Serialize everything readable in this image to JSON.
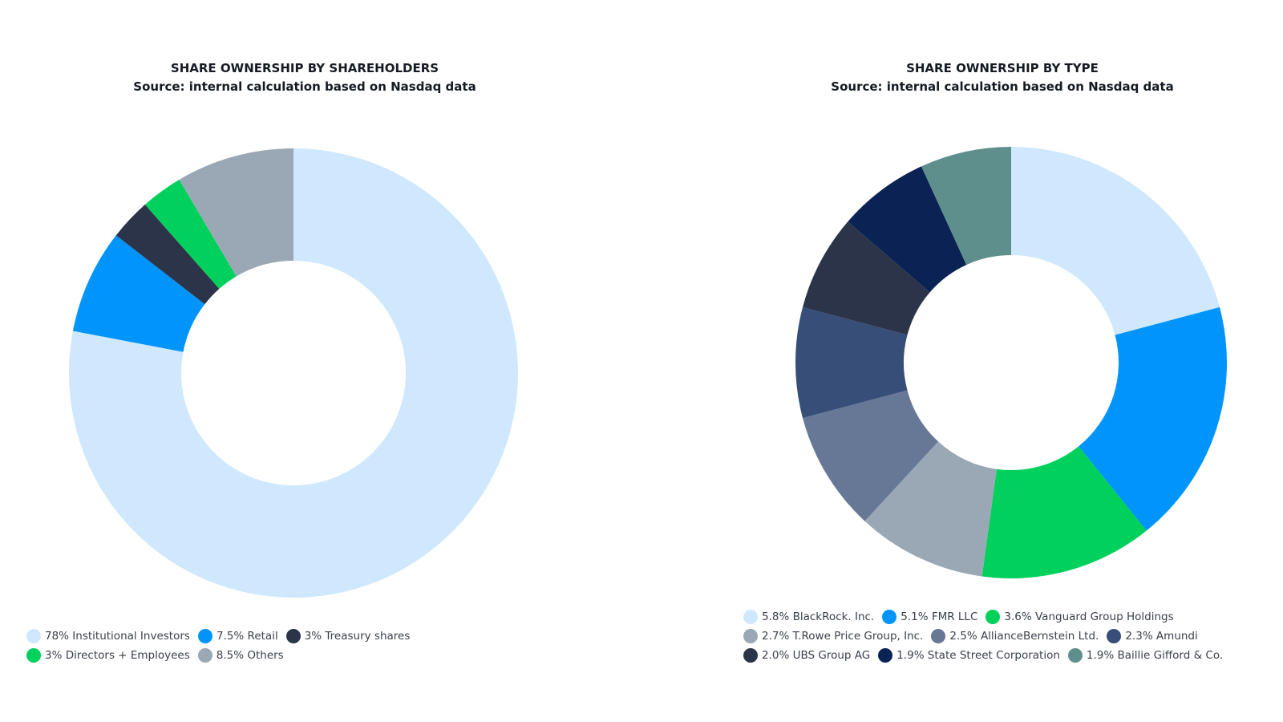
{
  "chart_data": [
    {
      "type": "pie",
      "subtype": "donut",
      "title": "SHARE OWNERSHIP BY SHAREHOLDERS",
      "subtitle": "Source: internal calculation based on Nasdaq data",
      "legend_position": "bottom-left",
      "slices": [
        {
          "label": "Institutional Investors",
          "legend": "78% Institutional Investors",
          "value": 78,
          "color": "#cfe8fd"
        },
        {
          "label": "Retail",
          "legend": "7.5% Retail",
          "value": 7.5,
          "color": "#0194fb"
        },
        {
          "label": "Treasury shares",
          "legend": "3% Treasury shares",
          "value": 3,
          "color": "#2b3448"
        },
        {
          "label": "Directors + Employees",
          "legend": "3% Directors + Employees",
          "value": 3,
          "color": "#00d05c"
        },
        {
          "label": "Others",
          "legend": "8.5% Others",
          "value": 8.5,
          "color": "#9aa7b5"
        }
      ]
    },
    {
      "type": "pie",
      "subtype": "donut",
      "title": "SHARE OWNERSHIP BY TYPE",
      "subtitle": "Source: internal calculation based on Nasdaq data",
      "legend_position": "bottom-left",
      "slices": [
        {
          "label": "BlackRock. Inc.",
          "legend": "5.8% BlackRock. Inc.",
          "value": 5.8,
          "color": "#cfe8fd"
        },
        {
          "label": "FMR LLC",
          "legend": "5.1% FMR LLC",
          "value": 5.1,
          "color": "#0194fb"
        },
        {
          "label": "Vanguard Group Holdings",
          "legend": "3.6% Vanguard Group Holdings",
          "value": 3.6,
          "color": "#00d05c"
        },
        {
          "label": "T.Rowe Price Group, Inc.",
          "legend": "2.7% T.Rowe Price Group, Inc.",
          "value": 2.7,
          "color": "#9aa7b5"
        },
        {
          "label": "AllianceBernstein Ltd.",
          "legend": "2.5% AllianceBernstein Ltd.",
          "value": 2.5,
          "color": "#677896"
        },
        {
          "label": "Amundi",
          "legend": "2.3% Amundi",
          "value": 2.3,
          "color": "#374e78"
        },
        {
          "label": "UBS Group AG",
          "legend": "2.0% UBS Group AG",
          "value": 2.0,
          "color": "#2b3448"
        },
        {
          "label": "State Street Corporation",
          "legend": "1.9% State Street Corporation",
          "value": 1.9,
          "color": "#0b2254"
        },
        {
          "label": "Baillie Gifford & Co.",
          "legend": "1.9% Baillie Gifford & Co.",
          "value": 1.9,
          "color": "#5e8f8c"
        }
      ]
    }
  ]
}
